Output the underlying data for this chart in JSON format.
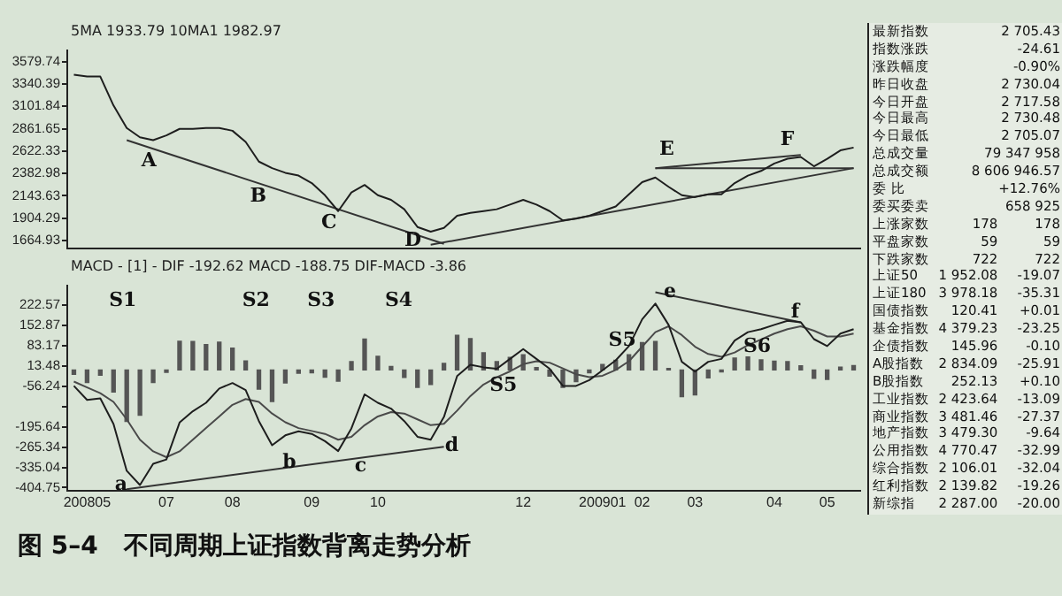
{
  "chart_data": [
    {
      "type": "line",
      "title": "图 5–4   不同周期上证指数背离走势分析",
      "subtitle": "5MA 1933.79   10MA1 1982.97",
      "tick_labels": "y",
      "legend": false,
      "ylim": [
        1580,
        3700
      ],
      "yticks": [
        1664.93,
        1904.29,
        2143.63,
        2382.98,
        2622.33,
        2861.65,
        3101.84,
        3340.39,
        3579.74
      ],
      "categories": [
        null,
        null,
        null,
        null,
        null,
        null,
        null,
        null,
        null,
        null,
        null,
        null,
        null,
        null,
        null,
        null,
        null,
        null,
        null,
        null,
        null,
        null,
        null,
        null,
        null,
        null,
        null,
        null,
        null,
        null,
        null,
        null,
        null,
        null,
        null,
        null,
        null,
        null,
        null,
        null,
        null,
        null,
        null,
        null,
        null,
        null,
        null,
        null,
        null,
        null,
        null,
        null,
        null,
        null,
        null,
        null,
        null,
        null,
        null,
        null
      ],
      "series": [
        {
          "color": "#1e1e1e",
          "values": [
            3440,
            3420,
            3420,
            3110,
            2870,
            2770,
            2740,
            2790,
            2860,
            2860,
            2870,
            2870,
            2840,
            2720,
            2510,
            2440,
            2390,
            2360,
            2280,
            2150,
            1980,
            2180,
            2260,
            2150,
            2100,
            2000,
            1810,
            1760,
            1800,
            1930,
            1960,
            1980,
            2000,
            2050,
            2100,
            2050,
            1980,
            1880,
            1900,
            1930,
            1980,
            2030,
            2160,
            2290,
            2340,
            2240,
            2150,
            2130,
            2160,
            2160,
            2280,
            2360,
            2410,
            2490,
            2540,
            2560,
            2460,
            2540,
            2630,
            2660
          ]
        },
        {
          "color": "#333333",
          "values": [
            null,
            null,
            null,
            null,
            2740,
            null,
            null,
            null,
            null,
            null,
            null,
            null,
            null,
            null,
            null,
            null,
            null,
            null,
            null,
            null,
            null,
            null,
            null,
            null,
            null,
            null,
            null,
            null,
            1630,
            null,
            null,
            null,
            null,
            null,
            null,
            null,
            null,
            null,
            null,
            null,
            null,
            null,
            null,
            null,
            null,
            null,
            null,
            null,
            null,
            null,
            null,
            null,
            null,
            null,
            null,
            null,
            null,
            null,
            null,
            null
          ]
        },
        {
          "color": "#333333",
          "values": [
            null,
            null,
            null,
            null,
            null,
            null,
            null,
            null,
            null,
            null,
            null,
            null,
            null,
            null,
            null,
            null,
            null,
            null,
            null,
            null,
            null,
            null,
            null,
            null,
            null,
            null,
            null,
            1620,
            null,
            null,
            null,
            null,
            null,
            null,
            null,
            null,
            null,
            null,
            null,
            null,
            null,
            null,
            null,
            null,
            null,
            null,
            null,
            null,
            null,
            null,
            null,
            null,
            null,
            null,
            null,
            null,
            null,
            null,
            null,
            2440
          ]
        },
        {
          "color": "#333333",
          "values": [
            null,
            null,
            null,
            null,
            null,
            null,
            null,
            null,
            null,
            null,
            null,
            null,
            null,
            null,
            null,
            null,
            null,
            null,
            null,
            null,
            null,
            null,
            null,
            null,
            null,
            null,
            null,
            null,
            null,
            null,
            null,
            null,
            null,
            null,
            null,
            null,
            null,
            null,
            null,
            null,
            null,
            null,
            null,
            null,
            2440,
            null,
            null,
            null,
            null,
            null,
            null,
            null,
            null,
            null,
            null,
            null,
            null,
            null,
            null,
            2440
          ]
        },
        {
          "color": "#333333",
          "values": [
            null,
            null,
            null,
            null,
            null,
            null,
            null,
            null,
            null,
            null,
            null,
            null,
            null,
            null,
            null,
            null,
            null,
            null,
            null,
            null,
            null,
            null,
            null,
            null,
            null,
            null,
            null,
            null,
            null,
            null,
            null,
            null,
            null,
            null,
            null,
            null,
            null,
            null,
            null,
            null,
            null,
            null,
            null,
            null,
            2440,
            null,
            null,
            null,
            null,
            null,
            null,
            null,
            null,
            null,
            null,
            2580,
            null,
            null,
            null,
            null
          ]
        }
      ],
      "annotations": [
        "A",
        "B",
        "C",
        "D",
        "E",
        "F"
      ]
    },
    {
      "type": "line",
      "subtitle": "MACD - [1] -  DIF -192.62  MACD -188.75  DIF-MACD -3.86",
      "legend": false,
      "ylim": [
        -415,
        290
      ],
      "yticks": [
        -404.75,
        -335.04,
        -265.34,
        -195.64,
        {
          "value": -125.94,
          "label": null
        },
        -56.24,
        13.48,
        83.17,
        152.87,
        222.57
      ],
      "categories": [
        null,
        "200805",
        null,
        null,
        null,
        null,
        null,
        "07",
        null,
        null,
        null,
        null,
        "08",
        null,
        null,
        null,
        null,
        null,
        "09",
        null,
        null,
        null,
        null,
        "10",
        null,
        null,
        null,
        null,
        null,
        null,
        null,
        null,
        null,
        null,
        "12",
        null,
        null,
        null,
        null,
        null,
        "200901",
        null,
        null,
        "02",
        null,
        null,
        null,
        "03",
        null,
        null,
        null,
        null,
        null,
        "04",
        null,
        null,
        null,
        "05",
        null,
        null
      ],
      "series": [
        {
          "type": "bar",
          "color": "#555555",
          "values": [
            -15,
            -43,
            -18,
            -76,
            -177,
            -156,
            -43,
            -8,
            99,
            98,
            87,
            96,
            75,
            31,
            -66,
            -109,
            -45,
            -11,
            -10,
            -25,
            -39,
            29,
            106,
            47,
            12,
            -26,
            -60,
            -50,
            23,
            119,
            108,
            59,
            29,
            43,
            52,
            8,
            -21,
            -60,
            -40,
            -10,
            19,
            33,
            52,
            94,
            98,
            5,
            -92,
            -86,
            -27,
            -7,
            41,
            45,
            35,
            30,
            29,
            14,
            -29,
            -33,
            10,
            15
          ]
        },
        {
          "color": "#1e1e1e",
          "values": [
            -55,
            -103,
            -98,
            -186,
            -347,
            -396,
            -323,
            -308,
            -181,
            -142,
            -113,
            -64,
            -45,
            -69,
            -176,
            -259,
            -225,
            -211,
            -220,
            -245,
            -279,
            -201,
            -84,
            -113,
            -133,
            -176,
            -230,
            -240,
            -162,
            -21,
            18,
            9,
            4,
            38,
            72,
            38,
            4,
            -55,
            -55,
            -35,
            -1,
            33,
            82,
            174,
            228,
            155,
            28,
            -6,
            28,
            38,
            101,
            130,
            140,
            155,
            169,
            164,
            106,
            82,
            125,
            140
          ]
        },
        {
          "color": "#4a4a4a",
          "values": [
            -40,
            -60,
            -80,
            -110,
            -170,
            -240,
            -280,
            -300,
            -280,
            -240,
            -200,
            -160,
            -120,
            -100,
            -110,
            -150,
            -180,
            -200,
            -210,
            -220,
            -240,
            -230,
            -190,
            -160,
            -145,
            -150,
            -170,
            -190,
            -185,
            -140,
            -90,
            -50,
            -25,
            -5,
            20,
            30,
            25,
            5,
            -15,
            -25,
            -20,
            0,
            30,
            80,
            130,
            150,
            120,
            80,
            55,
            45,
            60,
            85,
            105,
            125,
            140,
            150,
            135,
            115,
            115,
            125
          ]
        },
        {
          "color": "#333333",
          "values": [
            null,
            null,
            null,
            null,
            -410,
            null,
            null,
            null,
            null,
            null,
            null,
            null,
            null,
            null,
            null,
            null,
            null,
            null,
            null,
            null,
            null,
            null,
            null,
            null,
            null,
            null,
            null,
            null,
            -264,
            null,
            null,
            null,
            null,
            null,
            null,
            null,
            null,
            null,
            null,
            null,
            null,
            null,
            null,
            null,
            null,
            null,
            null,
            null,
            null,
            null,
            null,
            null,
            null,
            null,
            null,
            null,
            null,
            null,
            null,
            null
          ]
        },
        {
          "color": "#333333",
          "values": [
            null,
            null,
            null,
            null,
            null,
            null,
            null,
            null,
            null,
            null,
            null,
            null,
            null,
            null,
            null,
            null,
            null,
            null,
            null,
            null,
            null,
            null,
            null,
            null,
            null,
            null,
            null,
            null,
            null,
            null,
            null,
            null,
            null,
            null,
            null,
            null,
            null,
            null,
            null,
            null,
            null,
            null,
            null,
            null,
            267,
            null,
            null,
            null,
            null,
            null,
            null,
            null,
            null,
            null,
            null,
            164,
            null,
            null,
            null,
            null
          ]
        }
      ],
      "annotations": [
        "S1",
        "S2",
        "S3",
        "S4",
        "S5",
        "S5",
        "S6",
        "a",
        "b",
        "c",
        "d",
        "e",
        "f"
      ]
    },
    {
      "type": "other",
      "annotations": [
        "最新指数\t\t2 705.43",
        "指数涨跌\t\t-24.61",
        "涨跌幅度\t\t-0.90%",
        "昨日收盘\t\t2 730.04",
        "今日开盘\t\t2 717.58",
        "今日最高\t\t2 730.48",
        "今日最低\t\t2 705.07",
        "总成交量\t\t79 347 958",
        "总成交额\t\t8 606 946.57",
        "委  比\t\t+12.76%",
        "委买委卖\t\t658 925",
        "上涨家数\t178\t178",
        "平盘家数\t59\t59",
        "下跌家数\t722\t722",
        "上证50\t1 952.08\t-19.07",
        "上证180\t3 978.18\t-35.31",
        "国债指数\t120.41\t+0.01",
        "基金指数\t4 379.23\t-23.25",
        "企债指数\t145.96\t-0.10",
        "A股指数\t2 834.09\t-25.91",
        "B股指数\t252.13\t+0.10",
        "工业指数\t2 423.64\t-13.09",
        "商业指数\t3 481.46\t-27.37",
        "地产指数\t3 479.30\t-9.64",
        "公用指数\t4 770.47\t-32.99",
        "综合指数\t2 106.01\t-32.04",
        "红利指数\t2 139.82\t-19.26",
        "新综指\t2 287.00\t-20.00"
      ]
    }
  ]
}
